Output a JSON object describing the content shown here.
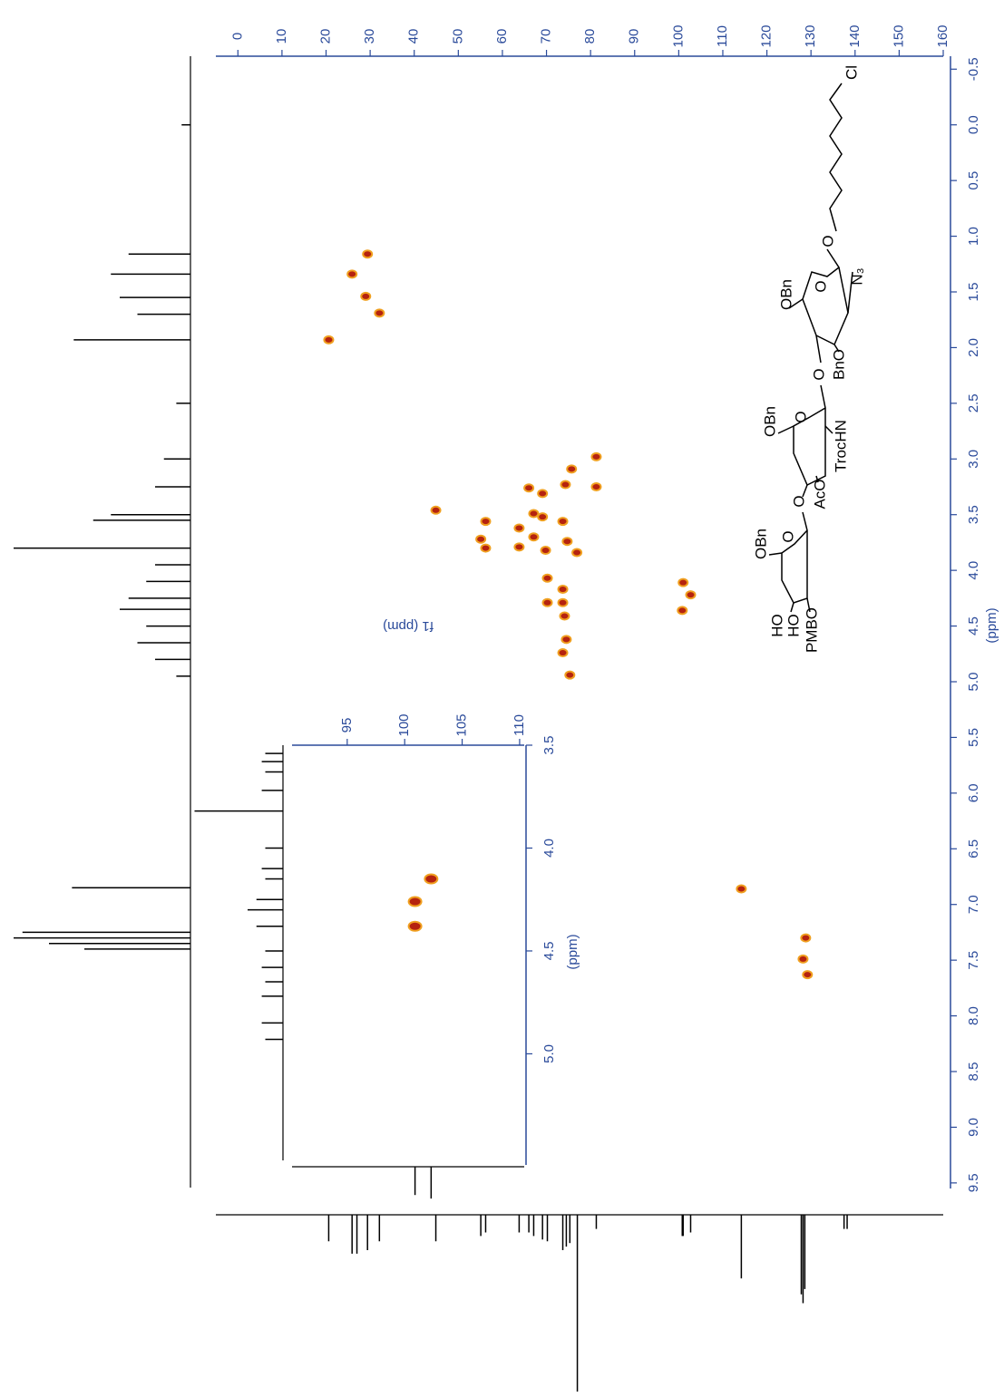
{
  "chart_data": [
    {
      "type": "scatter",
      "y_label": "(ppm)",
      "x": [
        29.4,
        25.9,
        29.0,
        32.1,
        20.6,
        81.3,
        75.7,
        74.3,
        81.3,
        66.0,
        69.1,
        44.9,
        67.1,
        73.7,
        56.2,
        69.1,
        63.8,
        67.1,
        55.1,
        74.7,
        63.8,
        56.2,
        69.8,
        76.9,
        70.2,
        101.0,
        102.7,
        73.7,
        70.2,
        73.7,
        100.8,
        74.1,
        74.5,
        73.7,
        75.3,
        114.2,
        128.8,
        128.2,
        129.2
      ],
      "values": [
        1.16,
        1.34,
        1.54,
        1.69,
        1.93,
        2.98,
        3.09,
        3.23,
        3.25,
        3.26,
        3.31,
        3.46,
        3.49,
        3.56,
        3.56,
        3.52,
        3.62,
        3.7,
        3.72,
        3.74,
        3.79,
        3.8,
        3.82,
        3.84,
        4.07,
        4.11,
        4.22,
        4.17,
        4.29,
        4.29,
        4.36,
        4.41,
        4.62,
        4.74,
        4.94,
        6.86,
        7.3,
        7.49,
        7.63
      ],
      "color": "#b5230f",
      "outline_color": "#f0a020",
      "xlim": [
        -5,
        160
      ],
      "ylim": [
        -0.6,
        9.55
      ],
      "xticks": [
        0,
        10,
        20,
        30,
        40,
        50,
        60,
        70,
        80,
        90,
        100,
        110,
        120,
        130,
        140,
        150,
        160
      ],
      "yticks": [
        -0.5,
        {
          "value": 0,
          "label": "0.0"
        },
        0.5,
        {
          "value": 1,
          "label": "1.0"
        },
        1.5,
        {
          "value": 2,
          "label": "2.0"
        },
        2.5,
        {
          "value": 3,
          "label": "3.0"
        },
        3.5,
        {
          "value": 4,
          "label": "4.0"
        },
        4.5,
        {
          "value": 5,
          "label": "5.0"
        },
        5.5,
        {
          "value": 6,
          "label": "6.0"
        },
        6.5,
        {
          "value": 7,
          "label": "7.0"
        },
        7.5,
        {
          "value": 8,
          "label": "8.0"
        },
        8.5,
        {
          "value": 9,
          "label": "9.0"
        },
        9.5
      ],
      "proton_projection": {
        "shifts": [
          0.0,
          1.16,
          1.34,
          1.55,
          1.7,
          1.93,
          2.5,
          3.0,
          3.25,
          3.5,
          3.55,
          3.8,
          3.95,
          4.1,
          4.25,
          4.35,
          4.5,
          4.65,
          4.8,
          4.95,
          6.85,
          7.25,
          7.3,
          7.35,
          7.4
        ],
        "intensities": [
          5,
          35,
          45,
          40,
          30,
          66,
          8,
          15,
          20,
          45,
          55,
          100,
          20,
          25,
          35,
          40,
          25,
          30,
          20,
          8,
          67,
          95,
          100,
          80,
          60
        ]
      },
      "carbon_projection": {
        "shifts": [
          20.6,
          25.9,
          27.0,
          29.4,
          32.1,
          44.9,
          55.1,
          56.2,
          63.8,
          66.0,
          67.1,
          69.1,
          70.2,
          73.7,
          74.5,
          75.3,
          77.0,
          81.3,
          100.8,
          101.0,
          102.7,
          114.2,
          127.8,
          128.2,
          128.6,
          137.5,
          138.2
        ],
        "intensities": [
          15,
          22,
          22,
          20,
          15,
          15,
          12,
          10,
          10,
          10,
          12,
          14,
          15,
          20,
          18,
          16,
          100,
          8,
          12,
          12,
          10,
          36,
          45,
          50,
          42,
          8,
          8
        ]
      }
    },
    {
      "type": "scatter",
      "x_label": "f1 (ppm)",
      "y_label": "(ppm)",
      "x": [
        100.9,
        100.9,
        102.3
      ],
      "values": [
        4.38,
        4.26,
        4.15
      ],
      "color": "#b5230f",
      "outline_color": "#f0a020",
      "xlim": [
        90.2,
        110.4
      ],
      "ylim": [
        3.5,
        5.54
      ],
      "xticks": [
        95,
        100,
        105,
        110
      ],
      "yticks": [
        3.5,
        {
          "value": 4,
          "label": "4.0"
        },
        4.5,
        {
          "value": 5,
          "label": "5.0"
        }
      ],
      "proton_projection": {
        "shifts": [
          3.54,
          3.58,
          3.63,
          3.72,
          3.82,
          4.0,
          4.1,
          4.15,
          4.25,
          4.3,
          4.38,
          4.5,
          4.58,
          4.65,
          4.72,
          4.85,
          4.93
        ],
        "intensities": [
          10,
          12,
          10,
          12,
          50,
          10,
          12,
          10,
          15,
          20,
          15,
          10,
          12,
          10,
          12,
          12,
          10
        ]
      },
      "carbon_projection": {
        "shifts": [
          100.9,
          102.3
        ],
        "intensities": [
          16,
          18
        ]
      }
    }
  ],
  "structure": {
    "labels": [
      "Cl",
      "O",
      "N₃",
      "O",
      "OBn",
      "BnO",
      "O",
      "O",
      "OBn",
      "TrocHN",
      "AcO",
      "O",
      "O",
      "OBn",
      "HO",
      "HO",
      "PMBO"
    ]
  }
}
